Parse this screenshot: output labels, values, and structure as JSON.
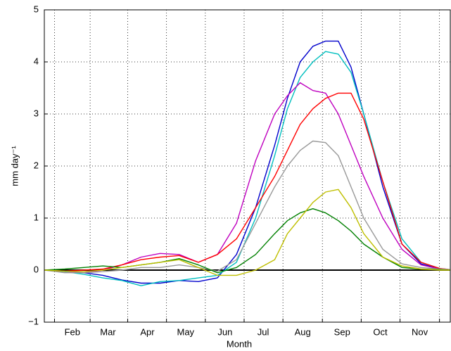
{
  "chart_data": {
    "type": "line",
    "xlabel": "Month",
    "ylabel": "mm day⁻¹",
    "x": [
      24,
      40,
      55,
      70,
      85,
      100,
      115,
      130,
      145,
      160,
      175,
      190,
      205,
      215,
      225,
      235,
      245,
      255,
      265,
      275,
      290,
      305,
      320,
      335,
      343
    ],
    "xlim": [
      24,
      343
    ],
    "xticks": [
      {
        "value": 46,
        "label": "Feb"
      },
      {
        "value": 74,
        "label": "Mar"
      },
      {
        "value": 105,
        "label": "Apr"
      },
      {
        "value": 135,
        "label": "May"
      },
      {
        "value": 166,
        "label": "Jun"
      },
      {
        "value": 196,
        "label": "Jul"
      },
      {
        "value": 227,
        "label": "Aug"
      },
      {
        "value": 258,
        "label": "Sep"
      },
      {
        "value": 288,
        "label": "Oct"
      },
      {
        "value": 319,
        "label": "Nov"
      }
    ],
    "ylim": [
      -1,
      5
    ],
    "yticks": [
      {
        "value": -1,
        "label": "−1"
      },
      0,
      1,
      2,
      3,
      4,
      5
    ],
    "grid": true,
    "zero_line": true,
    "series": [
      {
        "color": "#0000cc",
        "values": [
          0,
          -0.02,
          -0.05,
          -0.1,
          -0.19,
          -0.25,
          -0.25,
          -0.2,
          -0.22,
          -0.15,
          0.3,
          1.2,
          2.4,
          3.3,
          4.0,
          4.3,
          4.4,
          4.4,
          3.9,
          3.0,
          1.6,
          0.5,
          0.12,
          0.02,
          0.01
        ]
      },
      {
        "color": "#00bfbf",
        "values": [
          0,
          -0.03,
          -0.08,
          -0.15,
          -0.2,
          -0.3,
          -0.22,
          -0.2,
          -0.15,
          -0.1,
          0.15,
          1.0,
          2.2,
          3.1,
          3.7,
          4.0,
          4.2,
          4.15,
          3.8,
          3.0,
          1.7,
          0.6,
          0.15,
          0.03,
          0.01
        ]
      },
      {
        "color": "#bf00bf",
        "values": [
          0,
          -0.02,
          -0.05,
          0,
          0.1,
          0.25,
          0.32,
          0.3,
          0.15,
          0.3,
          0.9,
          2.1,
          3.0,
          3.35,
          3.6,
          3.45,
          3.4,
          3.0,
          2.4,
          1.8,
          1.0,
          0.4,
          0.1,
          0.02,
          0.01
        ]
      },
      {
        "color": "#ff0000",
        "values": [
          0,
          -0.02,
          0,
          0.02,
          0.1,
          0.2,
          0.25,
          0.28,
          0.15,
          0.3,
          0.6,
          1.2,
          1.8,
          2.3,
          2.8,
          3.1,
          3.3,
          3.4,
          3.4,
          2.9,
          1.7,
          0.5,
          0.15,
          0.03,
          0.01
        ]
      },
      {
        "color": "#999999",
        "values": [
          0,
          -0.05,
          -0.05,
          -0.03,
          0,
          0.05,
          0.05,
          0.1,
          0.05,
          -0.02,
          0.2,
          0.9,
          1.6,
          2.0,
          2.3,
          2.48,
          2.45,
          2.2,
          1.6,
          1.0,
          0.4,
          0.12,
          0.05,
          0.02,
          0.01
        ]
      },
      {
        "color": "#008000",
        "values": [
          0,
          0.02,
          0.05,
          0.08,
          0.05,
          0.1,
          0.15,
          0.22,
          0.1,
          -0.05,
          0.05,
          0.3,
          0.7,
          0.95,
          1.1,
          1.18,
          1.1,
          0.95,
          0.75,
          0.5,
          0.25,
          0.05,
          0.02,
          0.01,
          0
        ]
      },
      {
        "color": "#bfbf00",
        "values": [
          0,
          -0.02,
          -0.03,
          0,
          0.05,
          0.1,
          0.15,
          0.2,
          0.05,
          -0.1,
          -0.1,
          0,
          0.2,
          0.7,
          1.0,
          1.3,
          1.5,
          1.55,
          1.2,
          0.7,
          0.25,
          0.08,
          0.02,
          0,
          0
        ]
      }
    ]
  }
}
